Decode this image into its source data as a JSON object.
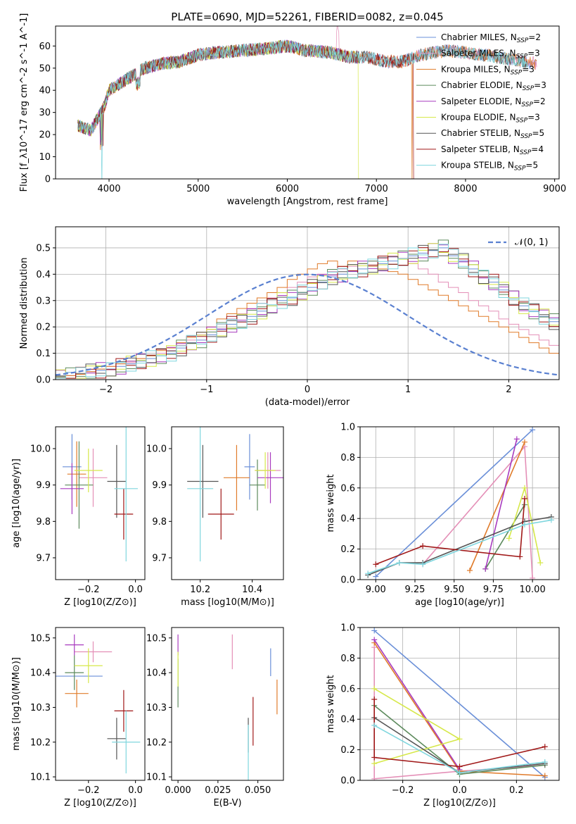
{
  "figure_title": "PLATE=0690, MJD=52261, FIBERID=0082, z=0.045",
  "colors": {
    "Chabrier MILES": "#6a8fd8",
    "Salpeter MILES": "#e48fb7",
    "Kroupa MILES": "#e07b2a",
    "Chabrier ELODIE": "#5c8a5c",
    "Salpeter ELODIE": "#a83bbf",
    "Kroupa ELODIE": "#d6e84a",
    "Chabrier STELIB": "#555555",
    "Salpeter STELIB": "#a01818",
    "Kroupa STELIB": "#7fd6de",
    "gauss": "#5a80d0"
  },
  "chart_data": [
    {
      "type": "line",
      "panel": "spectrum",
      "xlabel": "wavelength [Angstrom, rest frame]",
      "ylabel": "Flux [f_λ10^-17 erg cm^-2 s^-1 A^-1]",
      "xlim": [
        3400,
        9050
      ],
      "ylim": [
        0,
        69
      ],
      "xticks": [
        4000,
        5000,
        6000,
        7000,
        8000,
        9000
      ],
      "yticks": [
        0,
        10,
        20,
        30,
        40,
        50,
        60
      ],
      "legend_position": "top-right",
      "continuum_points": [
        [
          3650,
          24
        ],
        [
          3800,
          22
        ],
        [
          3950,
          33
        ],
        [
          4000,
          40
        ],
        [
          4200,
          45
        ],
        [
          4400,
          50
        ],
        [
          4600,
          52
        ],
        [
          4800,
          53
        ],
        [
          5000,
          56
        ],
        [
          5200,
          57
        ],
        [
          5500,
          58
        ],
        [
          5800,
          59
        ],
        [
          6000,
          60
        ],
        [
          6200,
          58
        ],
        [
          6500,
          57
        ],
        [
          6700,
          55
        ],
        [
          6900,
          55
        ],
        [
          7100,
          53
        ],
        [
          7300,
          53
        ],
        [
          7500,
          56
        ],
        [
          7800,
          58
        ],
        [
          8000,
          57
        ],
        [
          8200,
          56
        ],
        [
          8500,
          54
        ],
        [
          8800,
          52
        ]
      ],
      "series": [
        {
          "name": "Chabrier MILES",
          "legend": {
            "label": "Chabrier MILES, N",
            "sub": "SSP",
            "tail": "=2"
          },
          "end_x": 8800,
          "dropouts": []
        },
        {
          "name": "Salpeter MILES",
          "legend": {
            "label": "Salpeter MILES, N",
            "sub": "SSP",
            "tail": "=3"
          },
          "end_x": 8800,
          "dropouts": []
        },
        {
          "name": "Kroupa MILES",
          "legend": {
            "label": "Kroupa MILES, N",
            "sub": "SSP",
            "tail": "=3"
          },
          "end_x": 8800,
          "dropouts": [
            7400
          ]
        },
        {
          "name": "Chabrier ELODIE",
          "legend": {
            "label": "Chabrier ELODIE, N",
            "sub": "SSP",
            "tail": "=3"
          },
          "end_x": 6800,
          "dropouts": []
        },
        {
          "name": "Salpeter ELODIE",
          "legend": {
            "label": "Salpeter ELODIE, N",
            "sub": "SSP",
            "tail": "=2"
          },
          "end_x": 6800,
          "dropouts": []
        },
        {
          "name": "Kroupa ELODIE",
          "legend": {
            "label": "Kroupa ELODIE, N",
            "sub": "SSP",
            "tail": "=3"
          },
          "end_x": 6800,
          "dropouts": [
            6800
          ]
        },
        {
          "name": "Chabrier STELIB",
          "legend": {
            "label": "Chabrier STELIB, N",
            "sub": "SSP",
            "tail": "=5"
          },
          "end_x": 8700,
          "dropouts": []
        },
        {
          "name": "Salpeter STELIB",
          "legend": {
            "label": "Salpeter STELIB, N",
            "sub": "SSP",
            "tail": "=4"
          },
          "end_x": 7420,
          "dropouts": [
            7420
          ]
        },
        {
          "name": "Kroupa STELIB",
          "legend": {
            "label": "Kroupa STELIB, N",
            "sub": "SSP",
            "tail": "=5"
          },
          "end_x": 8700,
          "dropouts": [
            3920
          ]
        }
      ]
    },
    {
      "type": "line",
      "panel": "residual-histogram",
      "xlabel": "(data-model)/error",
      "ylabel": "Normed distribution",
      "xlim": [
        -2.5,
        2.5
      ],
      "ylim": [
        0,
        0.58
      ],
      "xticks": [
        -2,
        -1,
        0,
        1,
        2
      ],
      "yticks": [
        0.0,
        0.1,
        0.2,
        0.3,
        0.4,
        0.5
      ],
      "grid": true,
      "legend_position": "top-right",
      "legend": "𝒩(0, 1)",
      "bin_width": 0.1,
      "bin_start": -2.5,
      "heights_note": "step histograms, one per model",
      "series": [
        {
          "name": "Chabrier MILES",
          "values": [
            0.01,
            0.015,
            0.02,
            0.03,
            0.035,
            0.04,
            0.05,
            0.06,
            0.07,
            0.08,
            0.09,
            0.1,
            0.12,
            0.14,
            0.15,
            0.17,
            0.19,
            0.21,
            0.22,
            0.24,
            0.26,
            0.28,
            0.3,
            0.31,
            0.33,
            0.35,
            0.37,
            0.39,
            0.4,
            0.41,
            0.42,
            0.43,
            0.44,
            0.45,
            0.46,
            0.47,
            0.48,
            0.49,
            0.5,
            0.47,
            0.45,
            0.42,
            0.39,
            0.37,
            0.34,
            0.31,
            0.28,
            0.26,
            0.24,
            0.22
          ]
        },
        {
          "name": "Salpeter MILES",
          "values": [
            0.01,
            0.015,
            0.02,
            0.03,
            0.04,
            0.05,
            0.06,
            0.065,
            0.08,
            0.09,
            0.1,
            0.11,
            0.13,
            0.15,
            0.17,
            0.19,
            0.21,
            0.23,
            0.25,
            0.27,
            0.29,
            0.31,
            0.33,
            0.35,
            0.37,
            0.39,
            0.4,
            0.41,
            0.42,
            0.43,
            0.44,
            0.45,
            0.46,
            0.47,
            0.46,
            0.44,
            0.42,
            0.4,
            0.37,
            0.35,
            0.33,
            0.3,
            0.28,
            0.26,
            0.23,
            0.21,
            0.19,
            0.17,
            0.15,
            0.13
          ]
        },
        {
          "name": "Kroupa MILES",
          "values": [
            0.01,
            0.015,
            0.02,
            0.03,
            0.04,
            0.05,
            0.06,
            0.07,
            0.08,
            0.09,
            0.11,
            0.12,
            0.14,
            0.16,
            0.18,
            0.2,
            0.23,
            0.25,
            0.27,
            0.29,
            0.31,
            0.33,
            0.35,
            0.38,
            0.4,
            0.42,
            0.44,
            0.45,
            0.43,
            0.45,
            0.44,
            0.43,
            0.42,
            0.41,
            0.4,
            0.38,
            0.36,
            0.34,
            0.32,
            0.3,
            0.28,
            0.26,
            0.24,
            0.22,
            0.2,
            0.18,
            0.16,
            0.14,
            0.12,
            0.1
          ]
        }
      ],
      "gaussian": {
        "mu": 0,
        "sigma": 1
      }
    },
    {
      "type": "scatter",
      "panel": "age-vs-Z",
      "xlabel": "Z [log10(Z/Z⊙)]",
      "ylabel": "age  [log10(age/yr)]",
      "xlim": [
        -0.34,
        0.04
      ],
      "ylim": [
        9.64,
        10.06
      ],
      "xticks": [
        -0.2,
        0.0
      ],
      "yticks": [
        9.7,
        9.8,
        9.9,
        10.0
      ],
      "points": [
        {
          "series": "Chabrier MILES",
          "x": -0.27,
          "xerr": 0.04,
          "y": 9.95,
          "yerr": 0.09
        },
        {
          "series": "Salpeter MILES",
          "x": -0.18,
          "xerr": 0.06,
          "y": 9.92,
          "yerr": 0.08
        },
        {
          "series": "Kroupa MILES",
          "x": -0.25,
          "xerr": 0.04,
          "y": 9.93,
          "yerr": 0.09
        },
        {
          "series": "Chabrier ELODIE",
          "x": -0.24,
          "xerr": 0.06,
          "y": 9.9,
          "yerr": 0.12
        },
        {
          "series": "Salpeter ELODIE",
          "x": -0.27,
          "xerr": 0.05,
          "y": 9.89,
          "yerr": 0.07
        },
        {
          "series": "Kroupa ELODIE",
          "x": -0.2,
          "xerr": 0.06,
          "y": 9.94,
          "yerr": 0.06
        },
        {
          "series": "Chabrier STELIB",
          "x": -0.08,
          "xerr": 0.04,
          "y": 9.91,
          "yerr": 0.1
        },
        {
          "series": "Salpeter STELIB",
          "x": -0.05,
          "xerr": 0.04,
          "y": 9.82,
          "yerr": 0.07
        },
        {
          "series": "Kroupa STELIB",
          "x": -0.04,
          "xerr": 0.05,
          "y": 9.89,
          "yerr": 0.2
        }
      ]
    },
    {
      "type": "scatter",
      "panel": "age-vs-mass",
      "xlabel": "mass [log10(M/M⊙)]",
      "xlim": [
        10.09,
        10.52
      ],
      "ylim": [
        9.64,
        10.06
      ],
      "xticks": [
        10.2,
        10.4
      ],
      "yticks": [
        9.7,
        9.8,
        9.9,
        10.0
      ],
      "points": [
        {
          "series": "Chabrier MILES",
          "x": 10.39,
          "xerr": 0.02,
          "y": 9.95,
          "yerr": 0.09
        },
        {
          "series": "Salpeter MILES",
          "x": 10.46,
          "xerr": 0.05,
          "y": 9.94,
          "yerr": 0.05
        },
        {
          "series": "Kroupa MILES",
          "x": 10.34,
          "xerr": 0.05,
          "y": 9.92,
          "yerr": 0.09
        },
        {
          "series": "Chabrier ELODIE",
          "x": 10.42,
          "xerr": 0.03,
          "y": 9.9,
          "yerr": 0.07
        },
        {
          "series": "Salpeter ELODIE",
          "x": 10.47,
          "xerr": 0.05,
          "y": 9.92,
          "yerr": 0.07
        },
        {
          "series": "Kroupa ELODIE",
          "x": 10.45,
          "xerr": 0.04,
          "y": 9.94,
          "yerr": 0.05
        },
        {
          "series": "Chabrier STELIB",
          "x": 10.21,
          "xerr": 0.06,
          "y": 9.91,
          "yerr": 0.1
        },
        {
          "series": "Salpeter STELIB",
          "x": 10.28,
          "xerr": 0.05,
          "y": 9.82,
          "yerr": 0.07
        },
        {
          "series": "Kroupa STELIB",
          "x": 10.2,
          "xerr": 0.05,
          "y": 9.89,
          "yerr": 0.2
        }
      ]
    },
    {
      "type": "line",
      "panel": "mass-weight-vs-age",
      "xlabel": "age  [log10(age/yr)]",
      "ylabel": "mass weight",
      "xlim": [
        8.9,
        10.17
      ],
      "ylim": [
        0,
        1.0
      ],
      "xticks": [
        9.0,
        9.25,
        9.5,
        9.75,
        10.0
      ],
      "yticks": [
        0.0,
        0.2,
        0.4,
        0.6,
        0.8,
        1.0
      ],
      "grid": true,
      "series": [
        {
          "name": "Chabrier MILES",
          "x": [
            9.0,
            10.0
          ],
          "y": [
            0.02,
            0.98
          ]
        },
        {
          "name": "Salpeter MILES",
          "x": [
            9.3,
            9.95,
            10.0
          ],
          "y": [
            0.1,
            0.87,
            0.01
          ]
        },
        {
          "name": "Kroupa MILES",
          "x": [
            9.6,
            9.95
          ],
          "y": [
            0.06,
            0.9
          ]
        },
        {
          "name": "Chabrier ELODIE",
          "x": [
            9.7,
            9.95
          ],
          "y": [
            0.07,
            0.49
          ]
        },
        {
          "name": "Salpeter ELODIE",
          "x": [
            9.7,
            9.9
          ],
          "y": [
            0.07,
            0.92
          ]
        },
        {
          "name": "Kroupa ELODIE",
          "x": [
            9.85,
            9.95,
            10.05
          ],
          "y": [
            0.27,
            0.6,
            0.11
          ]
        },
        {
          "name": "Chabrier STELIB",
          "x": [
            8.95,
            9.15,
            9.3,
            9.95,
            10.12
          ],
          "y": [
            0.03,
            0.11,
            0.11,
            0.38,
            0.41
          ]
        },
        {
          "name": "Salpeter STELIB",
          "x": [
            9.0,
            9.3,
            9.92,
            9.95
          ],
          "y": [
            0.1,
            0.22,
            0.15,
            0.53
          ]
        },
        {
          "name": "Kroupa STELIB",
          "x": [
            8.95,
            9.15,
            9.3,
            9.95,
            10.12
          ],
          "y": [
            0.04,
            0.11,
            0.1,
            0.36,
            0.39
          ]
        }
      ]
    },
    {
      "type": "scatter",
      "panel": "mass-vs-Z",
      "xlabel": "Z [log10(Z/Z⊙)]",
      "ylabel": "mass [log10(M/M⊙)]",
      "xlim": [
        -0.34,
        0.04
      ],
      "ylim": [
        10.09,
        10.53
      ],
      "xticks": [
        -0.2,
        0.0
      ],
      "yticks": [
        10.1,
        10.2,
        10.3,
        10.4,
        10.5
      ],
      "points": [
        {
          "series": "Chabrier MILES",
          "x": -0.24,
          "xerr": 0.1,
          "y": 10.39,
          "yerr": 0.0
        },
        {
          "series": "Salpeter MILES",
          "x": -0.18,
          "xerr": 0.08,
          "y": 10.46,
          "yerr": 0.03
        },
        {
          "series": "Kroupa MILES",
          "x": -0.25,
          "xerr": 0.05,
          "y": 10.34,
          "yerr": 0.04
        },
        {
          "series": "Chabrier ELODIE",
          "x": -0.26,
          "xerr": 0.04,
          "y": 10.4,
          "yerr": 0.05
        },
        {
          "series": "Salpeter ELODIE",
          "x": -0.26,
          "xerr": 0.04,
          "y": 10.48,
          "yerr": 0.03
        },
        {
          "series": "Kroupa ELODIE",
          "x": -0.2,
          "xerr": 0.06,
          "y": 10.42,
          "yerr": 0.05
        },
        {
          "series": "Chabrier STELIB",
          "x": -0.08,
          "xerr": 0.04,
          "y": 10.21,
          "yerr": 0.06
        },
        {
          "series": "Salpeter STELIB",
          "x": -0.05,
          "xerr": 0.04,
          "y": 10.29,
          "yerr": 0.06
        },
        {
          "series": "Kroupa STELIB",
          "x": -0.04,
          "xerr": 0.06,
          "y": 10.2,
          "yerr": 0.09
        }
      ]
    },
    {
      "type": "scatter",
      "panel": "mass-vs-EBV",
      "xlabel": "E(B-V)",
      "xlim": [
        -0.004,
        0.066
      ],
      "ylim": [
        10.09,
        10.53
      ],
      "xticks": [
        0.0,
        0.025,
        0.05
      ],
      "yticks": [
        10.1,
        10.2,
        10.3,
        10.4,
        10.5
      ],
      "points": [
        {
          "series": "Chabrier MILES",
          "x": 0.058,
          "y": 10.43,
          "yerr": 0.04
        },
        {
          "series": "Salpeter MILES",
          "x": 0.034,
          "y": 10.46,
          "yerr": 0.05
        },
        {
          "series": "Kroupa MILES",
          "x": 0.062,
          "y": 10.33,
          "yerr": 0.05
        },
        {
          "series": "Chabrier ELODIE",
          "x": 0.0,
          "y": 10.37,
          "yerr": 0.07
        },
        {
          "series": "Salpeter ELODIE",
          "x": 0.0,
          "y": 10.48,
          "yerr": 0.03
        },
        {
          "series": "Kroupa ELODIE",
          "x": 0.0,
          "y": 10.41,
          "yerr": 0.05
        },
        {
          "series": "Chabrier STELIB",
          "x": 0.044,
          "y": 10.22,
          "yerr": 0.05
        },
        {
          "series": "Salpeter STELIB",
          "x": 0.047,
          "y": 10.26,
          "yerr": 0.07
        },
        {
          "series": "Kroupa STELIB",
          "x": 0.044,
          "y": 10.17,
          "yerr": 0.08
        }
      ]
    },
    {
      "type": "line",
      "panel": "mass-weight-vs-Z",
      "xlabel": "Z [log10(Z/Z⊙)]",
      "ylabel": "mass weight",
      "xlim": [
        -0.35,
        0.35
      ],
      "ylim": [
        0,
        1.0
      ],
      "xticks": [
        -0.2,
        0.0,
        0.2
      ],
      "yticks": [
        0.0,
        0.2,
        0.4,
        0.6,
        0.8,
        1.0
      ],
      "grid": true,
      "series": [
        {
          "name": "Chabrier MILES",
          "x": [
            -0.3,
            0.3
          ],
          "y": [
            0.98,
            0.02
          ]
        },
        {
          "name": "Salpeter MILES",
          "x": [
            -0.3,
            -0.3,
            0.0,
            0.3
          ],
          "y": [
            0.87,
            0.01,
            0.06,
            0.1
          ]
        },
        {
          "name": "Kroupa MILES",
          "x": [
            -0.3,
            0.0,
            0.3
          ],
          "y": [
            0.9,
            0.06,
            0.03
          ]
        },
        {
          "name": "Chabrier ELODIE",
          "x": [
            -0.3,
            0.0,
            0.3
          ],
          "y": [
            0.49,
            0.04,
            0.1
          ]
        },
        {
          "name": "Salpeter ELODIE",
          "x": [
            -0.3,
            0.0
          ],
          "y": [
            0.92,
            0.07
          ]
        },
        {
          "name": "Kroupa ELODIE",
          "x": [
            -0.3,
            0.0,
            -0.3
          ],
          "y": [
            0.6,
            0.27,
            0.11
          ]
        },
        {
          "name": "Chabrier STELIB",
          "x": [
            -0.3,
            0.0,
            0.3
          ],
          "y": [
            0.41,
            0.05,
            0.11
          ]
        },
        {
          "name": "Salpeter STELIB",
          "x": [
            -0.3,
            -0.3,
            0.0,
            0.3
          ],
          "y": [
            0.53,
            0.15,
            0.09,
            0.22
          ]
        },
        {
          "name": "Kroupa STELIB",
          "x": [
            -0.3,
            0.0,
            0.3
          ],
          "y": [
            0.36,
            0.05,
            0.12
          ]
        }
      ]
    }
  ]
}
